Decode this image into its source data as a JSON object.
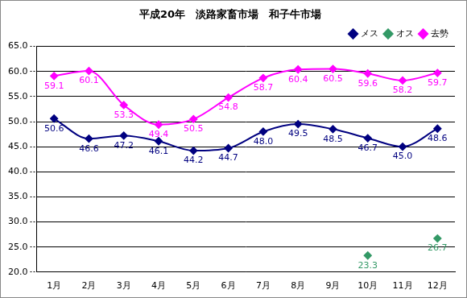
{
  "chart_data": {
    "type": "line",
    "title": "平成20年　淡路家畜市場　和子牛市場",
    "categories": [
      "1月",
      "2月",
      "3月",
      "4月",
      "5月",
      "6月",
      "7月",
      "8月",
      "9月",
      "10月",
      "11月",
      "12月"
    ],
    "series": [
      {
        "name": "メス",
        "color": "#000080",
        "marker": "diamond",
        "line_style": "solid",
        "values": [
          50.6,
          46.6,
          47.2,
          46.1,
          44.2,
          44.7,
          48.0,
          49.5,
          48.5,
          46.7,
          45.0,
          48.6
        ],
        "value_labels": [
          "50.6",
          "46.6",
          "47.2",
          "46.1",
          "44.2",
          "44.7",
          "48.0",
          "49.5",
          "48.5",
          "46.7",
          "45.0",
          "48.6"
        ]
      },
      {
        "name": "オス",
        "color": "#339966",
        "marker": "diamond",
        "line_style": "none",
        "values": [
          null,
          null,
          null,
          null,
          null,
          null,
          null,
          null,
          null,
          23.3,
          null,
          26.7
        ],
        "value_labels": [
          null,
          null,
          null,
          null,
          null,
          null,
          null,
          null,
          null,
          "23.3",
          null,
          "26.7"
        ]
      },
      {
        "name": "去勢",
        "color": "#ff00ff",
        "marker": "diamond",
        "line_style": "solid",
        "values": [
          59.1,
          60.1,
          53.3,
          49.4,
          50.5,
          54.8,
          58.7,
          60.4,
          60.5,
          59.6,
          58.2,
          59.7
        ],
        "value_labels": [
          "59.1",
          "60.1",
          "53.3",
          "49.4",
          "50.5",
          "54.8",
          "58.7",
          "60.4",
          "60.5",
          "59.6",
          "58.2",
          "59.7"
        ]
      }
    ],
    "ylim": [
      20,
      65
    ],
    "yticks": [
      {
        "value": 20,
        "label": "20.0"
      },
      {
        "value": 25,
        "label": "25.0"
      },
      {
        "value": 30,
        "label": "30.0"
      },
      {
        "value": 35,
        "label": "35.0"
      },
      {
        "value": 40,
        "label": "40.0"
      },
      {
        "value": 45,
        "label": "45.0"
      },
      {
        "value": 50,
        "label": "50.0"
      },
      {
        "value": 55,
        "label": "55.0"
      },
      {
        "value": 60,
        "label": "60.0"
      },
      {
        "value": 65,
        "label": "65.0"
      }
    ],
    "grid": true,
    "legend": "top-right",
    "data_labels": true
  }
}
